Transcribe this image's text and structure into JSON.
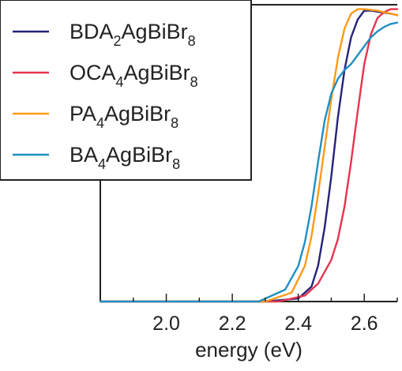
{
  "chart_data": {
    "type": "line",
    "xlabel": "energy (eV)",
    "ylabel": "",
    "xlim": [
      1.8,
      2.7
    ],
    "ylim": [
      0,
      1.0
    ],
    "x_ticks": [
      2.0,
      2.2,
      2.4,
      2.6
    ],
    "x_tick_labels": [
      "2.0",
      "2.2",
      "2.4",
      "2.6"
    ],
    "grid": false,
    "legend_position": "top-left",
    "series": [
      {
        "name": "BDA2AgBiBr8",
        "label_main": "BDA",
        "label_sub1": "2",
        "label_mid": "AgBiBr",
        "label_sub2": "8",
        "color": "#23237a",
        "x": [
          1.8,
          2.3,
          2.4,
          2.44,
          2.46,
          2.48,
          2.5,
          2.52,
          2.54,
          2.56,
          2.58,
          2.6,
          2.62,
          2.65,
          2.68,
          2.7
        ],
        "y": [
          0.0,
          0.0,
          0.01,
          0.05,
          0.12,
          0.25,
          0.42,
          0.62,
          0.78,
          0.89,
          0.95,
          0.98,
          0.98,
          0.975,
          0.97,
          0.965
        ]
      },
      {
        "name": "OCA4AgBiBr8",
        "label_main": "OCA",
        "label_sub1": "4",
        "label_mid": "AgBiBr",
        "label_sub2": "8",
        "color": "#e8344e",
        "x": [
          1.8,
          2.34,
          2.42,
          2.46,
          2.5,
          2.52,
          2.54,
          2.56,
          2.58,
          2.6,
          2.62,
          2.64,
          2.66,
          2.68,
          2.7
        ],
        "y": [
          0.0,
          0.0,
          0.02,
          0.06,
          0.14,
          0.21,
          0.32,
          0.47,
          0.64,
          0.8,
          0.9,
          0.955,
          0.975,
          0.985,
          0.985
        ]
      },
      {
        "name": "PA4AgBiBr8",
        "label_main": "PA",
        "label_sub1": "4",
        "label_mid": "AgBiBr",
        "label_sub2": "8",
        "color": "#ff9a18",
        "x": [
          1.8,
          2.3,
          2.38,
          2.42,
          2.44,
          2.46,
          2.48,
          2.5,
          2.52,
          2.54,
          2.56,
          2.58,
          2.6,
          2.64,
          2.66,
          2.68,
          2.7
        ],
        "y": [
          0.0,
          0.0,
          0.03,
          0.12,
          0.22,
          0.36,
          0.52,
          0.68,
          0.82,
          0.92,
          0.97,
          0.985,
          0.985,
          0.98,
          0.975,
          0.97,
          0.965
        ]
      },
      {
        "name": "BA4AgBiBr8",
        "label_main": "BA",
        "label_sub1": "4",
        "label_mid": "AgBiBr",
        "label_sub2": "8",
        "color": "#1f8fc4",
        "x": [
          1.8,
          2.28,
          2.36,
          2.4,
          2.42,
          2.44,
          2.46,
          2.48,
          2.5,
          2.52,
          2.54,
          2.56,
          2.58,
          2.6,
          2.62,
          2.64,
          2.66,
          2.68,
          2.7
        ],
        "y": [
          0.0,
          0.0,
          0.04,
          0.12,
          0.2,
          0.32,
          0.47,
          0.61,
          0.7,
          0.75,
          0.78,
          0.8,
          0.83,
          0.86,
          0.89,
          0.91,
          0.925,
          0.935,
          0.94
        ]
      }
    ]
  }
}
